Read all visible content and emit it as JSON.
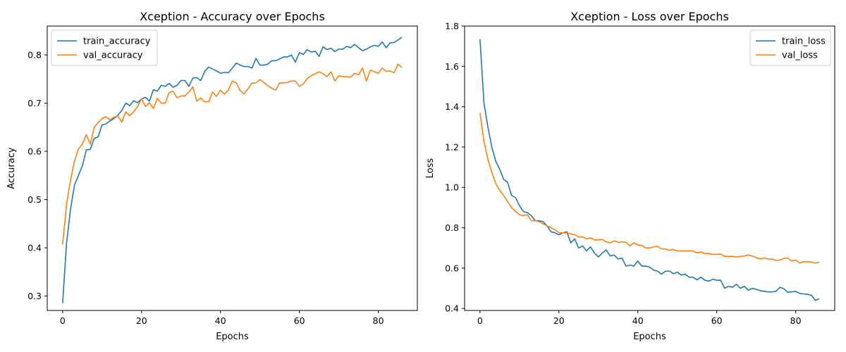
{
  "chart_data": [
    {
      "type": "line",
      "title": "Xception - Accuracy over Epochs",
      "xlabel": "Epochs",
      "ylabel": "Accuracy",
      "xlim": [
        -3.9,
        89.9
      ],
      "ylim": [
        0.27,
        0.86
      ],
      "xticks": [
        0,
        20,
        40,
        60,
        80
      ],
      "yticks": [
        0.3,
        0.4,
        0.5,
        0.6,
        0.7,
        0.8
      ],
      "ytick_labels": [
        "0.3",
        "0.4",
        "0.5",
        "0.6",
        "0.7",
        "0.8"
      ],
      "legend": "top-left",
      "grid": false,
      "series": [
        {
          "name": "train_accuracy",
          "color": "#1f77b4",
          "values": [
            0.285,
            0.41,
            0.48,
            0.53,
            0.55,
            0.57,
            0.603,
            0.604,
            0.627,
            0.63,
            0.655,
            0.657,
            0.663,
            0.668,
            0.675,
            0.685,
            0.7,
            0.695,
            0.705,
            0.701,
            0.709,
            0.712,
            0.704,
            0.728,
            0.725,
            0.737,
            0.735,
            0.741,
            0.733,
            0.737,
            0.747,
            0.747,
            0.735,
            0.752,
            0.753,
            0.747,
            0.766,
            0.775,
            0.771,
            0.767,
            0.762,
            0.764,
            0.763,
            0.773,
            0.783,
            0.779,
            0.776,
            0.776,
            0.773,
            0.793,
            0.779,
            0.779,
            0.781,
            0.788,
            0.788,
            0.792,
            0.796,
            0.796,
            0.8,
            0.785,
            0.805,
            0.801,
            0.811,
            0.806,
            0.808,
            0.797,
            0.817,
            0.811,
            0.814,
            0.807,
            0.812,
            0.812,
            0.818,
            0.815,
            0.822,
            0.815,
            0.809,
            0.812,
            0.817,
            0.82,
            0.818,
            0.827,
            0.815,
            0.825,
            0.826,
            0.831,
            0.837
          ]
        },
        {
          "name": "val_accuracy",
          "color": "#ff7f0e",
          "values": [
            0.407,
            0.49,
            0.54,
            0.58,
            0.605,
            0.615,
            0.635,
            0.615,
            0.65,
            0.66,
            0.668,
            0.672,
            0.665,
            0.671,
            0.673,
            0.661,
            0.682,
            0.674,
            0.682,
            0.693,
            0.709,
            0.693,
            0.701,
            0.689,
            0.71,
            0.7,
            0.7,
            0.722,
            0.725,
            0.711,
            0.715,
            0.715,
            0.723,
            0.734,
            0.704,
            0.711,
            0.703,
            0.703,
            0.723,
            0.714,
            0.727,
            0.719,
            0.727,
            0.746,
            0.742,
            0.726,
            0.719,
            0.73,
            0.742,
            0.742,
            0.749,
            0.743,
            0.736,
            0.731,
            0.727,
            0.742,
            0.742,
            0.743,
            0.746,
            0.746,
            0.735,
            0.74,
            0.751,
            0.757,
            0.761,
            0.765,
            0.761,
            0.755,
            0.765,
            0.746,
            0.757,
            0.755,
            0.755,
            0.754,
            0.762,
            0.759,
            0.773,
            0.746,
            0.769,
            0.765,
            0.762,
            0.773,
            0.766,
            0.767,
            0.763,
            0.781,
            0.774
          ]
        }
      ]
    },
    {
      "type": "line",
      "title": "Xception - Loss over Epochs",
      "xlabel": "Epochs",
      "ylabel": "Loss",
      "xlim": [
        -3.9,
        89.9
      ],
      "ylim": [
        0.39,
        1.8
      ],
      "xticks": [
        0,
        20,
        40,
        60,
        80
      ],
      "yticks": [
        0.4,
        0.6,
        0.8,
        1.0,
        1.2,
        1.4,
        1.6,
        1.8
      ],
      "ytick_labels": [
        "0.4",
        "0.6",
        "0.8",
        "1.0",
        "1.2",
        "1.4",
        "1.6",
        "1.8"
      ],
      "legend": "top-right",
      "grid": false,
      "series": [
        {
          "name": "train_loss",
          "color": "#1f77b4",
          "values": [
            1.735,
            1.42,
            1.3,
            1.2,
            1.13,
            1.09,
            1.04,
            1.025,
            0.96,
            0.95,
            0.91,
            0.88,
            0.875,
            0.86,
            0.835,
            0.835,
            0.83,
            0.81,
            0.78,
            0.775,
            0.765,
            0.775,
            0.78,
            0.725,
            0.745,
            0.7,
            0.71,
            0.685,
            0.705,
            0.675,
            0.655,
            0.675,
            0.69,
            0.66,
            0.665,
            0.645,
            0.65,
            0.61,
            0.615,
            0.61,
            0.635,
            0.61,
            0.61,
            0.605,
            0.59,
            0.585,
            0.57,
            0.585,
            0.585,
            0.572,
            0.58,
            0.565,
            0.57,
            0.555,
            0.555,
            0.542,
            0.555,
            0.54,
            0.535,
            0.545,
            0.54,
            0.54,
            0.5,
            0.51,
            0.505,
            0.52,
            0.5,
            0.51,
            0.49,
            0.5,
            0.495,
            0.488,
            0.485,
            0.482,
            0.482,
            0.485,
            0.505,
            0.498,
            0.48,
            0.482,
            0.485,
            0.475,
            0.472,
            0.47,
            0.465,
            0.44,
            0.448
          ]
        },
        {
          "name": "val_loss",
          "color": "#ff7f0e",
          "values": [
            1.37,
            1.23,
            1.14,
            1.075,
            1.02,
            0.985,
            0.96,
            0.93,
            0.9,
            0.88,
            0.865,
            0.86,
            0.865,
            0.835,
            0.835,
            0.83,
            0.82,
            0.81,
            0.8,
            0.79,
            0.775,
            0.775,
            0.775,
            0.77,
            0.765,
            0.755,
            0.755,
            0.745,
            0.75,
            0.74,
            0.74,
            0.742,
            0.73,
            0.725,
            0.735,
            0.728,
            0.73,
            0.728,
            0.71,
            0.725,
            0.715,
            0.712,
            0.7,
            0.7,
            0.705,
            0.708,
            0.695,
            0.695,
            0.688,
            0.692,
            0.685,
            0.685,
            0.685,
            0.685,
            0.685,
            0.675,
            0.68,
            0.672,
            0.672,
            0.668,
            0.668,
            0.67,
            0.658,
            0.658,
            0.658,
            0.655,
            0.658,
            0.66,
            0.665,
            0.66,
            0.652,
            0.645,
            0.65,
            0.645,
            0.645,
            0.638,
            0.64,
            0.648,
            0.65,
            0.635,
            0.64,
            0.625,
            0.632,
            0.632,
            0.63,
            0.625,
            0.63
          ]
        }
      ]
    }
  ]
}
